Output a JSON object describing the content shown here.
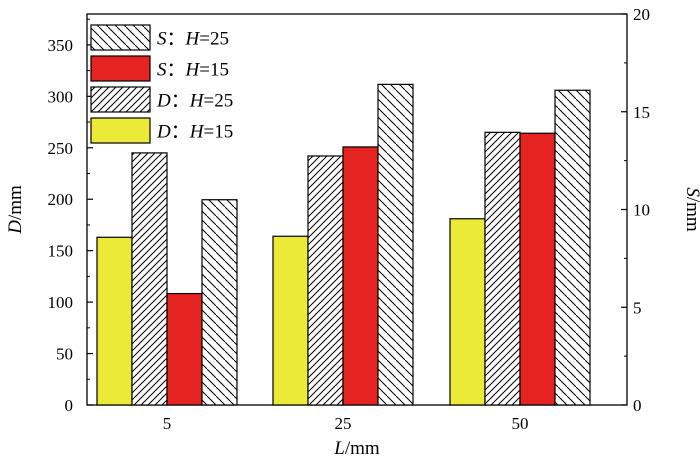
{
  "chart_data": {
    "type": "bar",
    "categories": [
      "5",
      "25",
      "50"
    ],
    "xlabel": {
      "var": "L",
      "unit": "/mm"
    },
    "ylabel_left": {
      "var": "D",
      "unit": "/mm"
    },
    "ylabel_right": {
      "var": "S",
      "unit": "/mm"
    },
    "ylim_left": [
      0,
      380
    ],
    "ylim_right": [
      0,
      20
    ],
    "yticks_left": [
      "0",
      "50",
      "100",
      "150",
      "200",
      "250",
      "300",
      "350"
    ],
    "yticks_right": [
      "0",
      "5",
      "10",
      "15",
      "20"
    ],
    "grid": false,
    "legend_position": "top-left",
    "series": [
      {
        "name": "D：H=15",
        "legend_var": "D",
        "legend_rest": "H=15",
        "axis": "left",
        "pattern": "yellow",
        "color": "#ecea38",
        "values": [
          163,
          164,
          181
        ]
      },
      {
        "name": "D：H=25",
        "legend_var": "D",
        "legend_rest": "H=25",
        "axis": "left",
        "pattern": "hatch-dense",
        "color": "#ffffff",
        "values": [
          245,
          242,
          265
        ]
      },
      {
        "name": "S：H=15",
        "legend_var": "S",
        "legend_rest": "H=15",
        "axis": "right",
        "pattern": "red",
        "color": "#e52421",
        "values": [
          5.7,
          13.2,
          13.9
        ]
      },
      {
        "name": "S：H=25",
        "legend_var": "S",
        "legend_rest": "H=25",
        "axis": "right",
        "pattern": "hatch-sparse",
        "color": "#ffffff",
        "values": [
          10.5,
          16.4,
          16.1
        ]
      }
    ],
    "legend_order": [
      3,
      2,
      1,
      0
    ]
  }
}
